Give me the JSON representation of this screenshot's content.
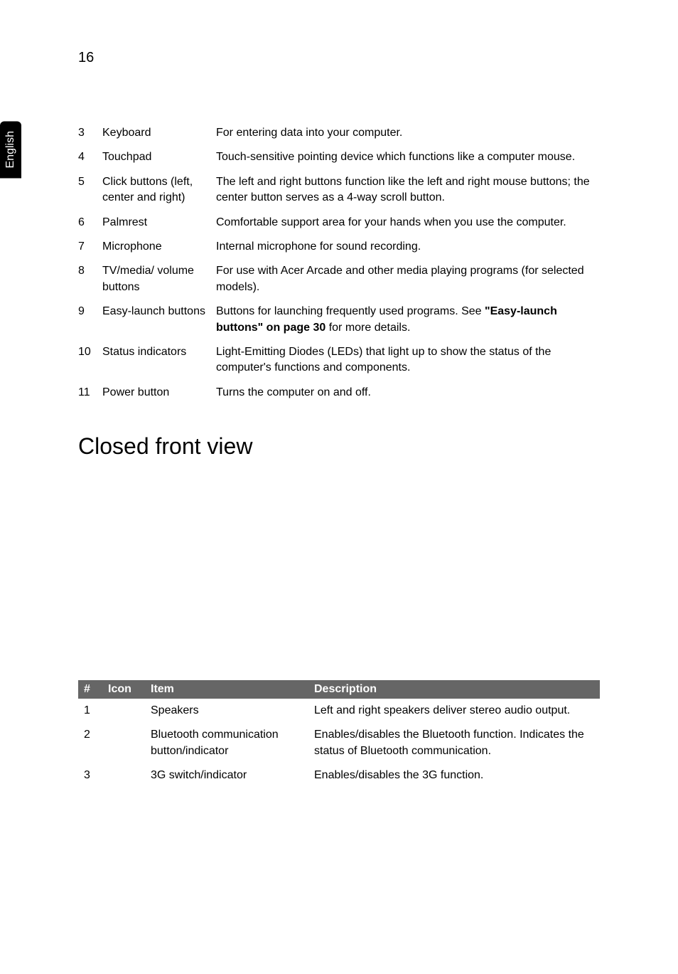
{
  "page_number": "16",
  "side_tab": "English",
  "spec_rows": [
    {
      "num": "3",
      "item": "Keyboard",
      "desc": "For entering data into your computer."
    },
    {
      "num": "4",
      "item": "Touchpad",
      "desc": "Touch-sensitive pointing device which functions like a computer mouse."
    },
    {
      "num": "5",
      "item": "Click buttons (left, center and right)",
      "desc": "The left and right buttons function like the left and right mouse buttons; the center button serves as a 4-way scroll button."
    },
    {
      "num": "6",
      "item": "Palmrest",
      "desc": "Comfortable support area for your hands when you use the computer."
    },
    {
      "num": "7",
      "item": "Microphone",
      "desc": "Internal microphone for sound recording."
    },
    {
      "num": "8",
      "item": "TV/media/ volume buttons",
      "desc": "For use with Acer Arcade and other media playing programs (for selected models)."
    },
    {
      "num": "9",
      "item": "Easy-launch buttons",
      "desc_prefix": "Buttons for launching frequently used programs. See ",
      "desc_bold": "\"Easy-launch buttons\" on page 30",
      "desc_suffix": " for more details."
    },
    {
      "num": "10",
      "item": "Status indicators",
      "desc": "Light-Emitting Diodes (LEDs) that light up to show the status of the computer's functions and components."
    },
    {
      "num": "11",
      "item": "Power button",
      "desc": "Turns the computer on and off."
    }
  ],
  "section_heading": "Closed front view",
  "closed_headers": {
    "num": "#",
    "icon": "Icon",
    "item": "Item",
    "desc": "Description"
  },
  "closed_rows": [
    {
      "num": "1",
      "item": "Speakers",
      "desc": "Left and right speakers deliver stereo audio output."
    },
    {
      "num": "2",
      "item": "Bluetooth communication button/indicator",
      "desc": "Enables/disables the Bluetooth function. Indicates the status of Bluetooth communication."
    },
    {
      "num": "3",
      "item": "3G switch/indicator",
      "desc": "Enables/disables the 3G function."
    }
  ]
}
